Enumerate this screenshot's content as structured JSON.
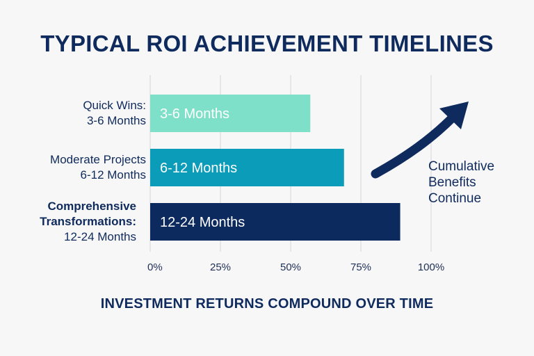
{
  "title": "TYPICAL ROI ACHIEVEMENT TIMELINES",
  "subtitle": "INVESTMENT RETURNS COMPOUND OVER TIME",
  "annotation": [
    "Cumulative",
    "Benefits",
    "Continue"
  ],
  "colors": {
    "title": "#0f2a5c",
    "grid": "#d9dce2",
    "bars": [
      "#7ee0c8",
      "#0a9cb8",
      "#0c2a5e"
    ],
    "arrow": "#0f2a5c"
  },
  "chart_data": {
    "type": "bar",
    "orientation": "horizontal",
    "title": "TYPICAL ROI ACHIEVEMENT TIMELINES",
    "xlim": [
      0,
      100
    ],
    "x_ticks": [
      "0%",
      "25%",
      "50%",
      "75%",
      "100%"
    ],
    "grid": "vertical",
    "categories": [
      {
        "lines": [
          "Quick Wins:",
          "3-6 Months"
        ],
        "bold_first": false
      },
      {
        "lines": [
          "Moderate Projects",
          "6-12 Months"
        ],
        "bold_first": false
      },
      {
        "lines": [
          "Comprehensive",
          "Transformations:",
          "12-24 Months"
        ],
        "bold_first": true
      }
    ],
    "values": [
      57,
      69,
      89
    ],
    "bar_labels": [
      "3-6 Months",
      "6-12 Months",
      "12-24 Months"
    ]
  }
}
